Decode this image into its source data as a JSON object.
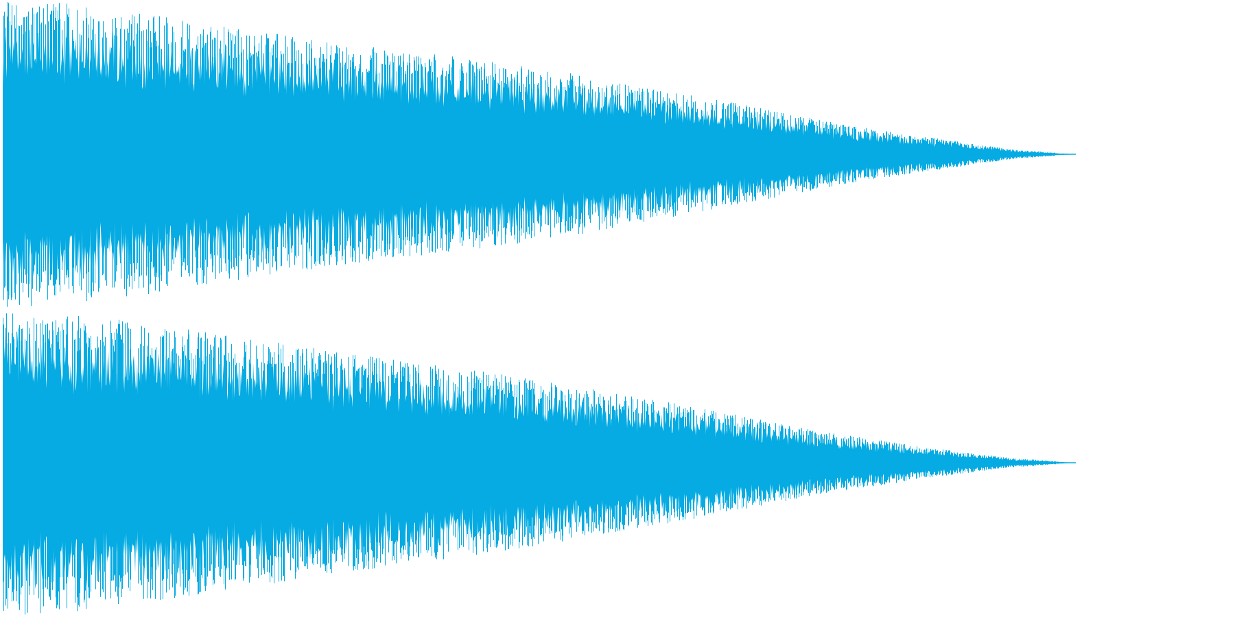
{
  "waveform": {
    "color": "#05abe2",
    "background": "#ffffff",
    "channels": [
      {
        "name": "",
        "peak_envelope": [
          1.0,
          0.98,
          0.93,
          0.86,
          0.8,
          0.74,
          0.69,
          0.64,
          0.59,
          0.53,
          0.45,
          0.38,
          0.3,
          0.22,
          0.15,
          0.09,
          0.03,
          0.0
        ]
      },
      {
        "name": "",
        "peak_envelope": [
          1.0,
          0.97,
          0.92,
          0.86,
          0.8,
          0.74,
          0.68,
          0.63,
          0.57,
          0.5,
          0.43,
          0.36,
          0.28,
          0.2,
          0.14,
          0.08,
          0.03,
          0.0
        ]
      }
    ],
    "duration_fraction": 0.87
  }
}
